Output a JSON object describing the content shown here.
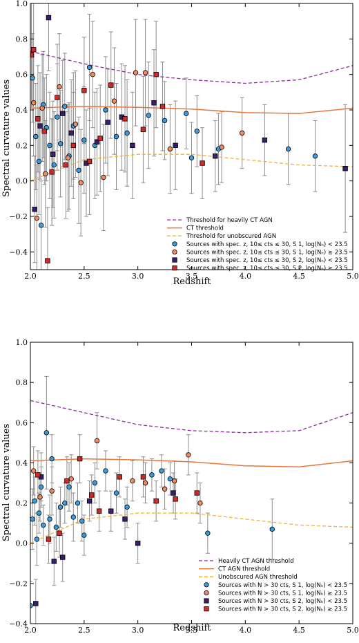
{
  "chart_data": [
    {
      "type": "scatter",
      "xlabel": "Redshift",
      "ylabel": "Spectral curvature values",
      "xlim": [
        2.0,
        5.0
      ],
      "ylim": [
        -0.5,
        1.0
      ],
      "xticks": [
        "2.0",
        "2.5",
        "3.0",
        "3.5",
        "4.0",
        "4.5",
        "5.0"
      ],
      "yticks": [
        "−0.4",
        "−0.2",
        "0.0",
        "0.2",
        "0.4",
        "0.6",
        "0.8",
        "1.0"
      ],
      "grid": false,
      "legend_position": "lower-right",
      "lines": [
        {
          "name": "Threshold for heavily CT AGN",
          "color": "#8e2c9e",
          "style": "dashed",
          "x": [
            2.0,
            2.5,
            3.0,
            3.5,
            4.0,
            4.5,
            5.0
          ],
          "y": [
            0.73,
            0.66,
            0.6,
            0.57,
            0.55,
            0.57,
            0.65
          ]
        },
        {
          "name": "CT threshold",
          "color": "#e8763b",
          "style": "solid",
          "x": [
            2.0,
            2.5,
            3.0,
            3.5,
            4.0,
            4.5,
            5.0
          ],
          "y": [
            0.41,
            0.42,
            0.415,
            0.405,
            0.385,
            0.38,
            0.41
          ]
        },
        {
          "name": "Threshold for unobscured AGN",
          "color": "#f2b134",
          "style": "dashed",
          "x": [
            2.0,
            2.5,
            3.0,
            3.5,
            4.0,
            4.5,
            5.0
          ],
          "y": [
            0.0,
            0.12,
            0.15,
            0.15,
            0.12,
            0.09,
            0.08
          ]
        }
      ],
      "series": [
        {
          "name": "Sources with spec. z, 10≤ cts ≤ 30, S 1, log(N_H) < 23.5",
          "marker": "circle",
          "color": "#3a9bdc",
          "points": [
            [
              2.02,
              0.58
            ],
            [
              2.05,
              0.25
            ],
            [
              2.08,
              0.11
            ],
            [
              2.1,
              -0.25
            ],
            [
              2.12,
              0.43
            ],
            [
              2.15,
              0.3
            ],
            [
              2.18,
              0.2
            ],
            [
              2.22,
              0.09
            ],
            [
              2.25,
              0.36
            ],
            [
              2.28,
              0.21
            ],
            [
              2.32,
              0.42
            ],
            [
              2.36,
              0.14
            ],
            [
              2.4,
              0.31
            ],
            [
              2.45,
              0.06
            ],
            [
              2.5,
              0.23
            ],
            [
              2.55,
              0.64
            ],
            [
              2.6,
              0.2
            ],
            [
              2.7,
              0.4
            ],
            [
              2.8,
              0.25
            ],
            [
              2.9,
              0.27
            ],
            [
              3.1,
              0.37
            ],
            [
              3.25,
              0.34
            ],
            [
              3.45,
              0.38
            ],
            [
              3.55,
              0.28
            ],
            [
              3.75,
              0.18
            ],
            [
              4.65,
              0.14
            ],
            [
              4.4,
              0.18
            ],
            [
              3.5,
              0.13
            ]
          ],
          "err": [
            0.25,
            0.3,
            0.3,
            0.25,
            0.3,
            0.3,
            0.3,
            0.3,
            0.3,
            0.3,
            0.3,
            0.3,
            0.3,
            0.3,
            0.3,
            0.3,
            0.3,
            0.3,
            0.3,
            0.3,
            0.3,
            0.22,
            0.2,
            0.2,
            0.2,
            0.2,
            0.2,
            0.2
          ]
        },
        {
          "name": "Sources with spec. z, 10≤ cts ≤ 30, S 1, log(N_H) ≥ 23.5",
          "marker": "circle",
          "color": "#f08a5d",
          "points": [
            [
              2.03,
              0.44
            ],
            [
              2.06,
              -0.21
            ],
            [
              2.11,
              0.41
            ],
            [
              2.14,
              0.04
            ],
            [
              2.2,
              0.05
            ],
            [
              2.27,
              0.53
            ],
            [
              2.35,
              0.13
            ],
            [
              2.42,
              0.32
            ],
            [
              2.47,
              -0.01
            ],
            [
              2.58,
              0.6
            ],
            [
              2.68,
              0.02
            ],
            [
              2.78,
              0.45
            ],
            [
              2.98,
              0.61
            ],
            [
              3.07,
              0.61
            ],
            [
              3.3,
              0.18
            ],
            [
              3.78,
              0.19
            ],
            [
              3.97,
              0.27
            ]
          ],
          "err": [
            0.3,
            0.3,
            0.3,
            0.3,
            0.3,
            0.3,
            0.3,
            0.3,
            0.3,
            0.3,
            0.3,
            0.3,
            0.3,
            0.3,
            0.25,
            0.2,
            0.2
          ]
        },
        {
          "name": "Sources with spec. z, 10≤ cts ≤ 30, S 2, log(N_H) < 23.5",
          "marker": "square",
          "color": "#3b1d6e",
          "points": [
            [
              2.04,
              -0.16
            ],
            [
              2.09,
              0.31
            ],
            [
              2.17,
              0.92
            ],
            [
              2.21,
              0.15
            ],
            [
              2.3,
              0.38
            ],
            [
              2.38,
              0.27
            ],
            [
              2.52,
              0.1
            ],
            [
              2.62,
              0.22
            ],
            [
              2.72,
              0.33
            ],
            [
              2.85,
              0.36
            ],
            [
              2.95,
              0.2
            ],
            [
              3.15,
              0.44
            ],
            [
              3.35,
              0.2
            ],
            [
              3.72,
              0.14
            ],
            [
              4.18,
              0.23
            ],
            [
              4.93,
              0.07
            ]
          ],
          "err": [
            0.3,
            0.3,
            0.3,
            0.3,
            0.3,
            0.3,
            0.3,
            0.3,
            0.3,
            0.3,
            0.3,
            0.3,
            0.25,
            0.2,
            0.2,
            0.36
          ]
        },
        {
          "name": "Sources with spec. z, 10≤ cts ≤ 30, S 2, log(N_H) ≥ 23.5",
          "marker": "square",
          "color": "#d62728",
          "points": [
            [
              2.01,
              0.71
            ],
            [
              2.03,
              0.74
            ],
            [
              2.07,
              0.35
            ],
            [
              2.13,
              0.28
            ],
            [
              2.16,
              -0.45
            ],
            [
              2.2,
              0.05
            ],
            [
              2.25,
              0.47
            ],
            [
              2.33,
              0.09
            ],
            [
              2.4,
              0.2
            ],
            [
              2.5,
              0.51
            ],
            [
              2.55,
              0.11
            ],
            [
              2.65,
              0.24
            ],
            [
              2.75,
              0.54
            ],
            [
              2.88,
              0.35
            ],
            [
              3.05,
              0.29
            ],
            [
              3.17,
              0.6
            ],
            [
              3.23,
              0.42
            ],
            [
              3.6,
              0.1
            ]
          ],
          "err": [
            0.3,
            0.3,
            0.3,
            0.3,
            0.3,
            0.3,
            0.3,
            0.3,
            0.3,
            0.3,
            0.3,
            0.3,
            0.3,
            0.3,
            0.3,
            0.3,
            0.25,
            0.2
          ]
        }
      ]
    },
    {
      "type": "scatter",
      "xlabel": "Redshift",
      "ylabel": "Spectral curvature values",
      "xlim": [
        2.0,
        5.0
      ],
      "ylim": [
        -0.4,
        1.0
      ],
      "xticks": [
        "2.0",
        "2.5",
        "3.0",
        "3.5",
        "4.0",
        "4.5",
        "5.0"
      ],
      "yticks": [
        "−0.4",
        "−0.2",
        "0.0",
        "0.2",
        "0.4",
        "0.6",
        "0.8",
        "1.0"
      ],
      "grid": false,
      "legend_position": "lower-right",
      "lines": [
        {
          "name": "Heavily CT AGN threshold",
          "color": "#8e2c9e",
          "style": "dashed",
          "x": [
            2.0,
            2.5,
            3.0,
            3.5,
            4.0,
            4.5,
            5.0
          ],
          "y": [
            0.71,
            0.65,
            0.59,
            0.56,
            0.55,
            0.56,
            0.65
          ]
        },
        {
          "name": "CT AGN threshold",
          "color": "#e8763b",
          "style": "solid",
          "x": [
            2.0,
            2.5,
            3.0,
            3.5,
            4.0,
            4.5,
            5.0
          ],
          "y": [
            0.41,
            0.42,
            0.415,
            0.405,
            0.385,
            0.38,
            0.41
          ]
        },
        {
          "name": "Unobscured AGN threshold",
          "color": "#f2b134",
          "style": "dashed",
          "x": [
            2.0,
            2.5,
            3.0,
            3.5,
            4.0,
            4.5,
            5.0
          ],
          "y": [
            0.0,
            0.12,
            0.15,
            0.15,
            0.12,
            0.09,
            0.08
          ]
        }
      ],
      "series": [
        {
          "name": "Sources with N > 30 cts, S 1, log(N_H) < 23.5",
          "marker": "circle",
          "color": "#3a9bdc",
          "points": [
            [
              2.0,
              -0.31
            ],
            [
              2.02,
              0.12
            ],
            [
              2.04,
              0.21
            ],
            [
              2.06,
              0.02
            ],
            [
              2.08,
              0.15
            ],
            [
              2.1,
              0.28
            ],
            [
              2.12,
              0.09
            ],
            [
              2.15,
              0.55
            ],
            [
              2.18,
              0.12
            ],
            [
              2.2,
              0.42
            ],
            [
              2.24,
              0.08
            ],
            [
              2.28,
              0.18
            ],
            [
              2.32,
              0.2
            ],
            [
              2.36,
              0.28
            ],
            [
              2.4,
              0.13
            ],
            [
              2.44,
              0.2
            ],
            [
              2.48,
              0.11
            ],
            [
              2.5,
              0.04
            ],
            [
              2.6,
              0.3
            ],
            [
              2.7,
              0.36
            ],
            [
              2.8,
              0.25
            ],
            [
              2.9,
              0.18
            ],
            [
              3.13,
              0.34
            ],
            [
              3.22,
              0.36
            ],
            [
              3.3,
              0.32
            ],
            [
              3.65,
              0.05
            ],
            [
              4.25,
              0.07
            ]
          ],
          "err": [
            0.12,
            0.15,
            0.12,
            0.13,
            0.1,
            0.1,
            0.1,
            0.28,
            0.12,
            0.12,
            0.12,
            0.1,
            0.1,
            0.12,
            0.12,
            0.1,
            0.1,
            0.1,
            0.1,
            0.1,
            0.1,
            0.1,
            0.08,
            0.08,
            0.08,
            0.1,
            0.15
          ]
        },
        {
          "name": "Sources with N > 30 cts, S 1, log(N_H) ≥ 23.5",
          "marker": "circle",
          "color": "#f08a5d",
          "points": [
            [
              2.03,
              0.36
            ],
            [
              2.09,
              0.23
            ],
            [
              2.2,
              0.26
            ],
            [
              2.38,
              0.32
            ],
            [
              2.62,
              0.51
            ],
            [
              2.95,
              0.31
            ],
            [
              3.07,
              0.3
            ],
            [
              3.25,
              0.27
            ],
            [
              3.34,
              0.31
            ],
            [
              3.47,
              0.44
            ],
            [
              3.58,
              0.2
            ]
          ],
          "err": [
            0.12,
            0.12,
            0.12,
            0.12,
            0.14,
            0.1,
            0.1,
            0.1,
            0.1,
            0.1,
            0.1
          ]
        },
        {
          "name": "Sources with N > 30 cts, S 2, log(N_H) < 23.5",
          "marker": "square",
          "color": "#3b1d6e",
          "points": [
            [
              2.05,
              -0.3
            ],
            [
              2.1,
              0.33
            ],
            [
              2.22,
              -0.09
            ],
            [
              2.3,
              -0.07
            ],
            [
              2.55,
              0.21
            ],
            [
              2.75,
              0.16
            ],
            [
              2.88,
              0.12
            ],
            [
              3.0,
              0.0
            ],
            [
              3.33,
              0.25
            ]
          ],
          "err": [
            0.12,
            0.12,
            0.12,
            0.12,
            0.1,
            0.1,
            0.1,
            0.1,
            0.1
          ]
        },
        {
          "name": "Sources with N > 30 cts, S 2, log(N_H) ≥ 23.5",
          "marker": "square",
          "color": "#d62728",
          "points": [
            [
              2.07,
              0.34
            ],
            [
              2.17,
              0.02
            ],
            [
              2.27,
              0.05
            ],
            [
              2.34,
              0.31
            ],
            [
              2.46,
              0.42
            ],
            [
              2.57,
              0.24
            ],
            [
              2.64,
              0.16
            ],
            [
              2.83,
              0.33
            ],
            [
              3.05,
              0.33
            ],
            [
              3.17,
              0.21
            ],
            [
              3.55,
              0.25
            ],
            [
              3.35,
              0.22
            ]
          ],
          "err": [
            0.12,
            0.12,
            0.12,
            0.12,
            0.12,
            0.1,
            0.1,
            0.1,
            0.1,
            0.1,
            0.1,
            0.1
          ]
        }
      ]
    }
  ],
  "panels": [
    {
      "xlabel": "Redshift",
      "ylabel": "Spectral curvature values",
      "legend": [
        "Threshold for heavily CT AGN",
        "CT threshold",
        "Threshold for unobscured AGN",
        "Sources with spec. z, 10≤ cts ≤ 30, S 1, log(N_H) < 23.5",
        "Sources with spec. z, 10≤ cts ≤ 30, S 1, log(N_H) ≥ 23.5",
        "Sources with spec. z, 10≤ cts ≤ 30, S 2, log(N_H) < 23.5",
        "Sources with spec. z, 10≤ cts ≤ 30, S 2, log(N_H) ≥ 23.5"
      ]
    },
    {
      "xlabel": "Redshift",
      "ylabel": "Spectral curvature values",
      "legend": [
        "Heavily CT AGN threshold",
        "CT AGN threshold",
        "Unobscured AGN threshold",
        "Sources with N > 30 cts, S 1, log(N_H) < 23.5",
        "Sources with N > 30 cts, S 1, log(N_H) ≥ 23.5",
        "Sources with N > 30 cts, S 2, log(N_H) < 23.5",
        "Sources with N > 30 cts, S 2, log(N_H) ≥ 23.5"
      ]
    }
  ]
}
